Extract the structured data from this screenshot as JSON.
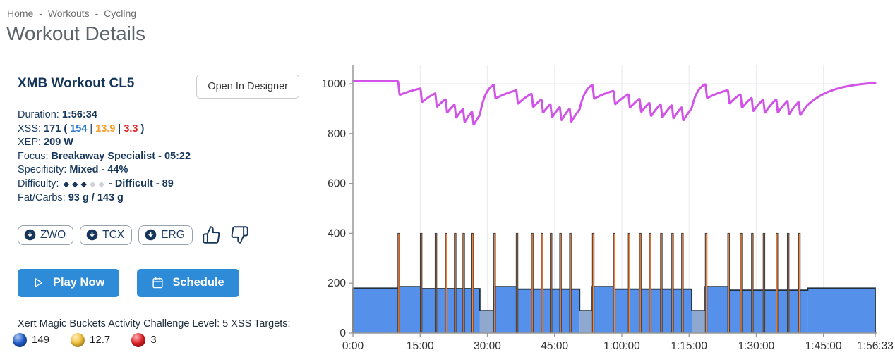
{
  "breadcrumb": {
    "items": [
      {
        "label": "Home"
      },
      {
        "label": "Workouts"
      },
      {
        "label": "Cycling"
      }
    ],
    "separator": "-"
  },
  "page_title": "Workout Details",
  "workout": {
    "title": "XMB Workout CL5",
    "open_in_designer_label": "Open In Designer",
    "details": {
      "duration_label": "Duration:",
      "duration_value": "1:56:34",
      "xss_label": "XSS:",
      "xss_total": "171",
      "paren_open": "(",
      "pipe": "|",
      "paren_close": ")",
      "xss_low": "154",
      "xss_mid": "13.9",
      "xss_high": "3.3",
      "xep_label": "XEP:",
      "xep_value": "209 W",
      "focus_label": "Focus:",
      "focus_value": "Breakaway Specialist - 05:22",
      "specificity_label": "Specificity:",
      "specificity_value": "Mixed - 44%",
      "difficulty_label": "Difficulty:",
      "difficulty_diamonds_filled": 3,
      "difficulty_diamonds_total": 5,
      "difficulty_value": "- Difficult - 89",
      "fatcarbs_label": "Fat/Carbs:",
      "fatcarbs_value": "93 g / 143 g"
    },
    "downloads": [
      {
        "label": "ZWO"
      },
      {
        "label": "TCX"
      },
      {
        "label": "ERG"
      }
    ],
    "actions": {
      "play_label": "Play Now",
      "schedule_label": "Schedule"
    },
    "challenge": {
      "text": "Xert Magic Buckets Activity Challenge Level: 5 XSS Targets:",
      "targets": [
        {
          "name": "blue-bucket",
          "color": "#2260cf",
          "value": "149"
        },
        {
          "name": "yellow-bucket",
          "color": "#f7c53d",
          "value": "12.7"
        },
        {
          "name": "red-bucket",
          "color": "#e32226",
          "value": "3"
        }
      ]
    }
  },
  "ui_colors": {
    "navy_text": "#16365c",
    "primary_button": "#2e8bd8",
    "xss_low": "#2b7ad0",
    "xss_mid": "#f5a02c",
    "xss_high": "#e02222",
    "diamond_filled": "#16365c",
    "diamond_empty": "#cdd3d9"
  },
  "chart_data": {
    "type": "area+line",
    "title": "",
    "xlabel": "",
    "ylabel": "",
    "x_axis": {
      "total_seconds": 6993,
      "ticks": [
        {
          "label": "0:00",
          "sec": 0
        },
        {
          "label": "15:00",
          "sec": 900
        },
        {
          "label": "30:00",
          "sec": 1800
        },
        {
          "label": "45:00",
          "sec": 2700
        },
        {
          "label": "1:00:00",
          "sec": 3600
        },
        {
          "label": "1:15:00",
          "sec": 4500
        },
        {
          "label": "1:30:00",
          "sec": 5400
        },
        {
          "label": "1:45:00",
          "sec": 6300
        },
        {
          "label": "1:56:33",
          "sec": 6993
        }
      ]
    },
    "y_axis": {
      "ticks": [
        0,
        200,
        400,
        600,
        800,
        1000
      ],
      "max": 1075,
      "grid_vertical": true
    },
    "series": [
      {
        "name": "MPA",
        "type": "line",
        "color": "#d153e8"
      },
      {
        "name": "Power",
        "type": "area",
        "color": "#5591ea"
      },
      {
        "name": "Sprint intervals",
        "type": "spikes",
        "color": "#f5823a"
      }
    ],
    "power_segments_sec": [
      [
        0,
        606,
        180
      ],
      [
        606,
        906,
        186
      ],
      [
        906,
        1700,
        178
      ],
      [
        1700,
        1890,
        90
      ],
      [
        1890,
        2190,
        186
      ],
      [
        2190,
        3036,
        176
      ],
      [
        3036,
        3204,
        90
      ],
      [
        3204,
        3492,
        186
      ],
      [
        3492,
        4536,
        176
      ],
      [
        4536,
        4716,
        90
      ],
      [
        4716,
        5022,
        186
      ],
      [
        5022,
        6090,
        172
      ],
      [
        6090,
        6993,
        180
      ]
    ],
    "spikes_sec": [
      606,
      906,
      1104,
      1242,
      1362,
      1476,
      1596,
      1890,
      2190,
      2394,
      2526,
      2646,
      2772,
      2904,
      3210,
      3492,
      3690,
      3840,
      3972,
      4122,
      4272,
      4404,
      4722,
      5022,
      5190,
      5340,
      5496,
      5670,
      5820,
      5970
    ],
    "spike_watts": 400,
    "spike_duration_sec": 20,
    "mpa": {
      "start": 1010,
      "threshold": 209
    },
    "colors": {
      "power_fill": "#5591ea",
      "recovery_fill": "#8fa8d0",
      "spike_fill": "#f5823a",
      "spike_stroke": "#3d3d3d",
      "outline": "#22303e",
      "mpa": "#d153e8",
      "grid": "#ededf4",
      "axis": "#999999",
      "tick_label": "#333333"
    }
  }
}
